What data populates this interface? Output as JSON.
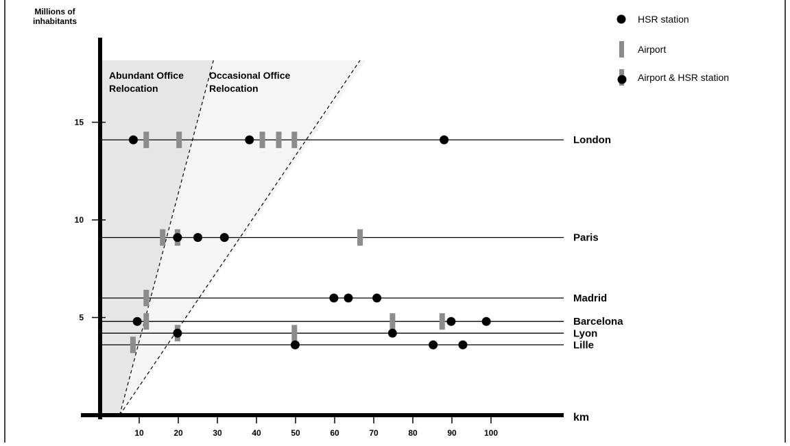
{
  "chart_data": {
    "type": "scatter",
    "title": "",
    "xlabel": "km",
    "ylabel": "Millions of inhabitants",
    "ylabel_lines": [
      "Millions of",
      "inhabitants"
    ],
    "xlim": [
      -5,
      110
    ],
    "ylim": [
      0,
      20
    ],
    "x_ticks": [
      10,
      20,
      30,
      40,
      50,
      60,
      70,
      80,
      90,
      100
    ],
    "y_ticks": [
      5,
      10,
      15
    ],
    "grid": false,
    "legend_position": "top-right",
    "legend": [
      {
        "label": "HSR station",
        "marker": "dot"
      },
      {
        "label": "Airport",
        "marker": "bar"
      },
      {
        "label": "Airport & HSR station",
        "marker": "bar-dot"
      }
    ],
    "regions": [
      {
        "label_lines": [
          "Abundant Office",
          "Relocation"
        ],
        "color": "#e6e6e6"
      },
      {
        "label_lines": [
          "Occasional Office",
          "Relocation"
        ],
        "color": "#f5f5f5"
      }
    ],
    "cities": [
      {
        "name": "London",
        "population": 14.1,
        "hsr": [
          8.5,
          38.2,
          88.0
        ],
        "airports": [
          11.8,
          20.2,
          41.5,
          45.7,
          49.7
        ]
      },
      {
        "name": "Paris",
        "population": 9.1,
        "hsr": [
          19.8,
          25.0,
          31.8
        ],
        "airports": [
          16.0,
          19.8,
          66.5
        ]
      },
      {
        "name": "Madrid",
        "population": 6.0,
        "hsr": [
          59.8,
          63.5,
          70.8
        ],
        "airports": [
          11.8
        ]
      },
      {
        "name": "Barcelona",
        "population": 4.8,
        "hsr": [
          9.5,
          89.8,
          98.8
        ],
        "airports": [
          11.8,
          74.8,
          87.5
        ]
      },
      {
        "name": "Lyon",
        "population": 4.2,
        "hsr": [
          19.8,
          74.8
        ],
        "airports": [
          19.8,
          49.7
        ]
      },
      {
        "name": "Lille",
        "population": 3.6,
        "hsr": [
          49.9,
          85.2,
          92.8
        ],
        "airports": [
          8.4
        ]
      }
    ],
    "colors": {
      "airport": "#8c8c8c",
      "hsr": "#000000",
      "axis": "#000000"
    }
  }
}
